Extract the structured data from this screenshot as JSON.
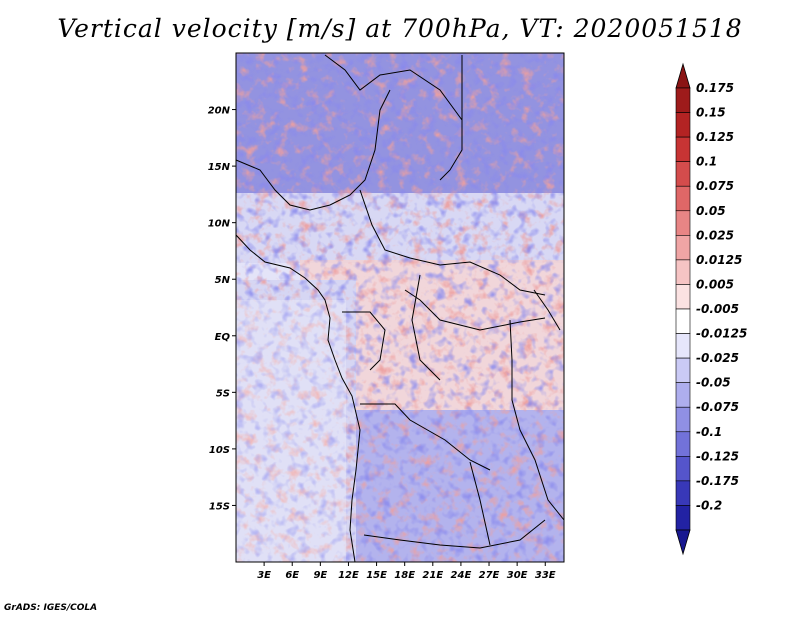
{
  "title": "Vertical velocity [m/s] at 700hPa, VT: 2020051518",
  "credit": "GrADS: IGES/COLA",
  "map": {
    "lon_range": [
      0,
      35
    ],
    "lat_range": [
      -20,
      25
    ],
    "lat_ticks": [
      {
        "value": 20,
        "label": "20N"
      },
      {
        "value": 15,
        "label": "15N"
      },
      {
        "value": 10,
        "label": "10N"
      },
      {
        "value": 5,
        "label": "5N"
      },
      {
        "value": 0,
        "label": "EQ"
      },
      {
        "value": -5,
        "label": "5S"
      },
      {
        "value": -10,
        "label": "10S"
      },
      {
        "value": -15,
        "label": "15S"
      }
    ],
    "lon_ticks": [
      {
        "value": 3,
        "label": "3E"
      },
      {
        "value": 6,
        "label": "6E"
      },
      {
        "value": 9,
        "label": "9E"
      },
      {
        "value": 12,
        "label": "12E"
      },
      {
        "value": 15,
        "label": "15E"
      },
      {
        "value": 18,
        "label": "18E"
      },
      {
        "value": 21,
        "label": "21E"
      },
      {
        "value": 24,
        "label": "24E"
      },
      {
        "value": 27,
        "label": "27E"
      },
      {
        "value": 30,
        "label": "30E"
      },
      {
        "value": 33,
        "label": "33E"
      }
    ]
  },
  "colorbar": {
    "levels": [
      {
        "label": "0.175",
        "color": "#9e1b1b"
      },
      {
        "label": "0.15",
        "color": "#b32323"
      },
      {
        "label": "0.125",
        "color": "#c73434"
      },
      {
        "label": "0.1",
        "color": "#d44c4c"
      },
      {
        "label": "0.075",
        "color": "#df6767"
      },
      {
        "label": "0.05",
        "color": "#e88585"
      },
      {
        "label": "0.025",
        "color": "#f0a5a5"
      },
      {
        "label": "0.0125",
        "color": "#f6c4c4"
      },
      {
        "label": "0.005",
        "color": "#fbe2e2"
      },
      {
        "label": "-0.005",
        "color": "#ffffff"
      },
      {
        "label": "-0.0125",
        "color": "#e6e6fb"
      },
      {
        "label": "-0.025",
        "color": "#cacaf5"
      },
      {
        "label": "-0.05",
        "color": "#aeaeee"
      },
      {
        "label": "-0.075",
        "color": "#9090e4"
      },
      {
        "label": "-0.1",
        "color": "#7272d9"
      },
      {
        "label": "-0.125",
        "color": "#5555cb"
      },
      {
        "label": "-0.175",
        "color": "#3838b8"
      },
      {
        "label": "-0.2",
        "color": "#2222a3"
      }
    ],
    "top_arrow_color": "#8a1414",
    "bottom_arrow_color": "#181890"
  }
}
